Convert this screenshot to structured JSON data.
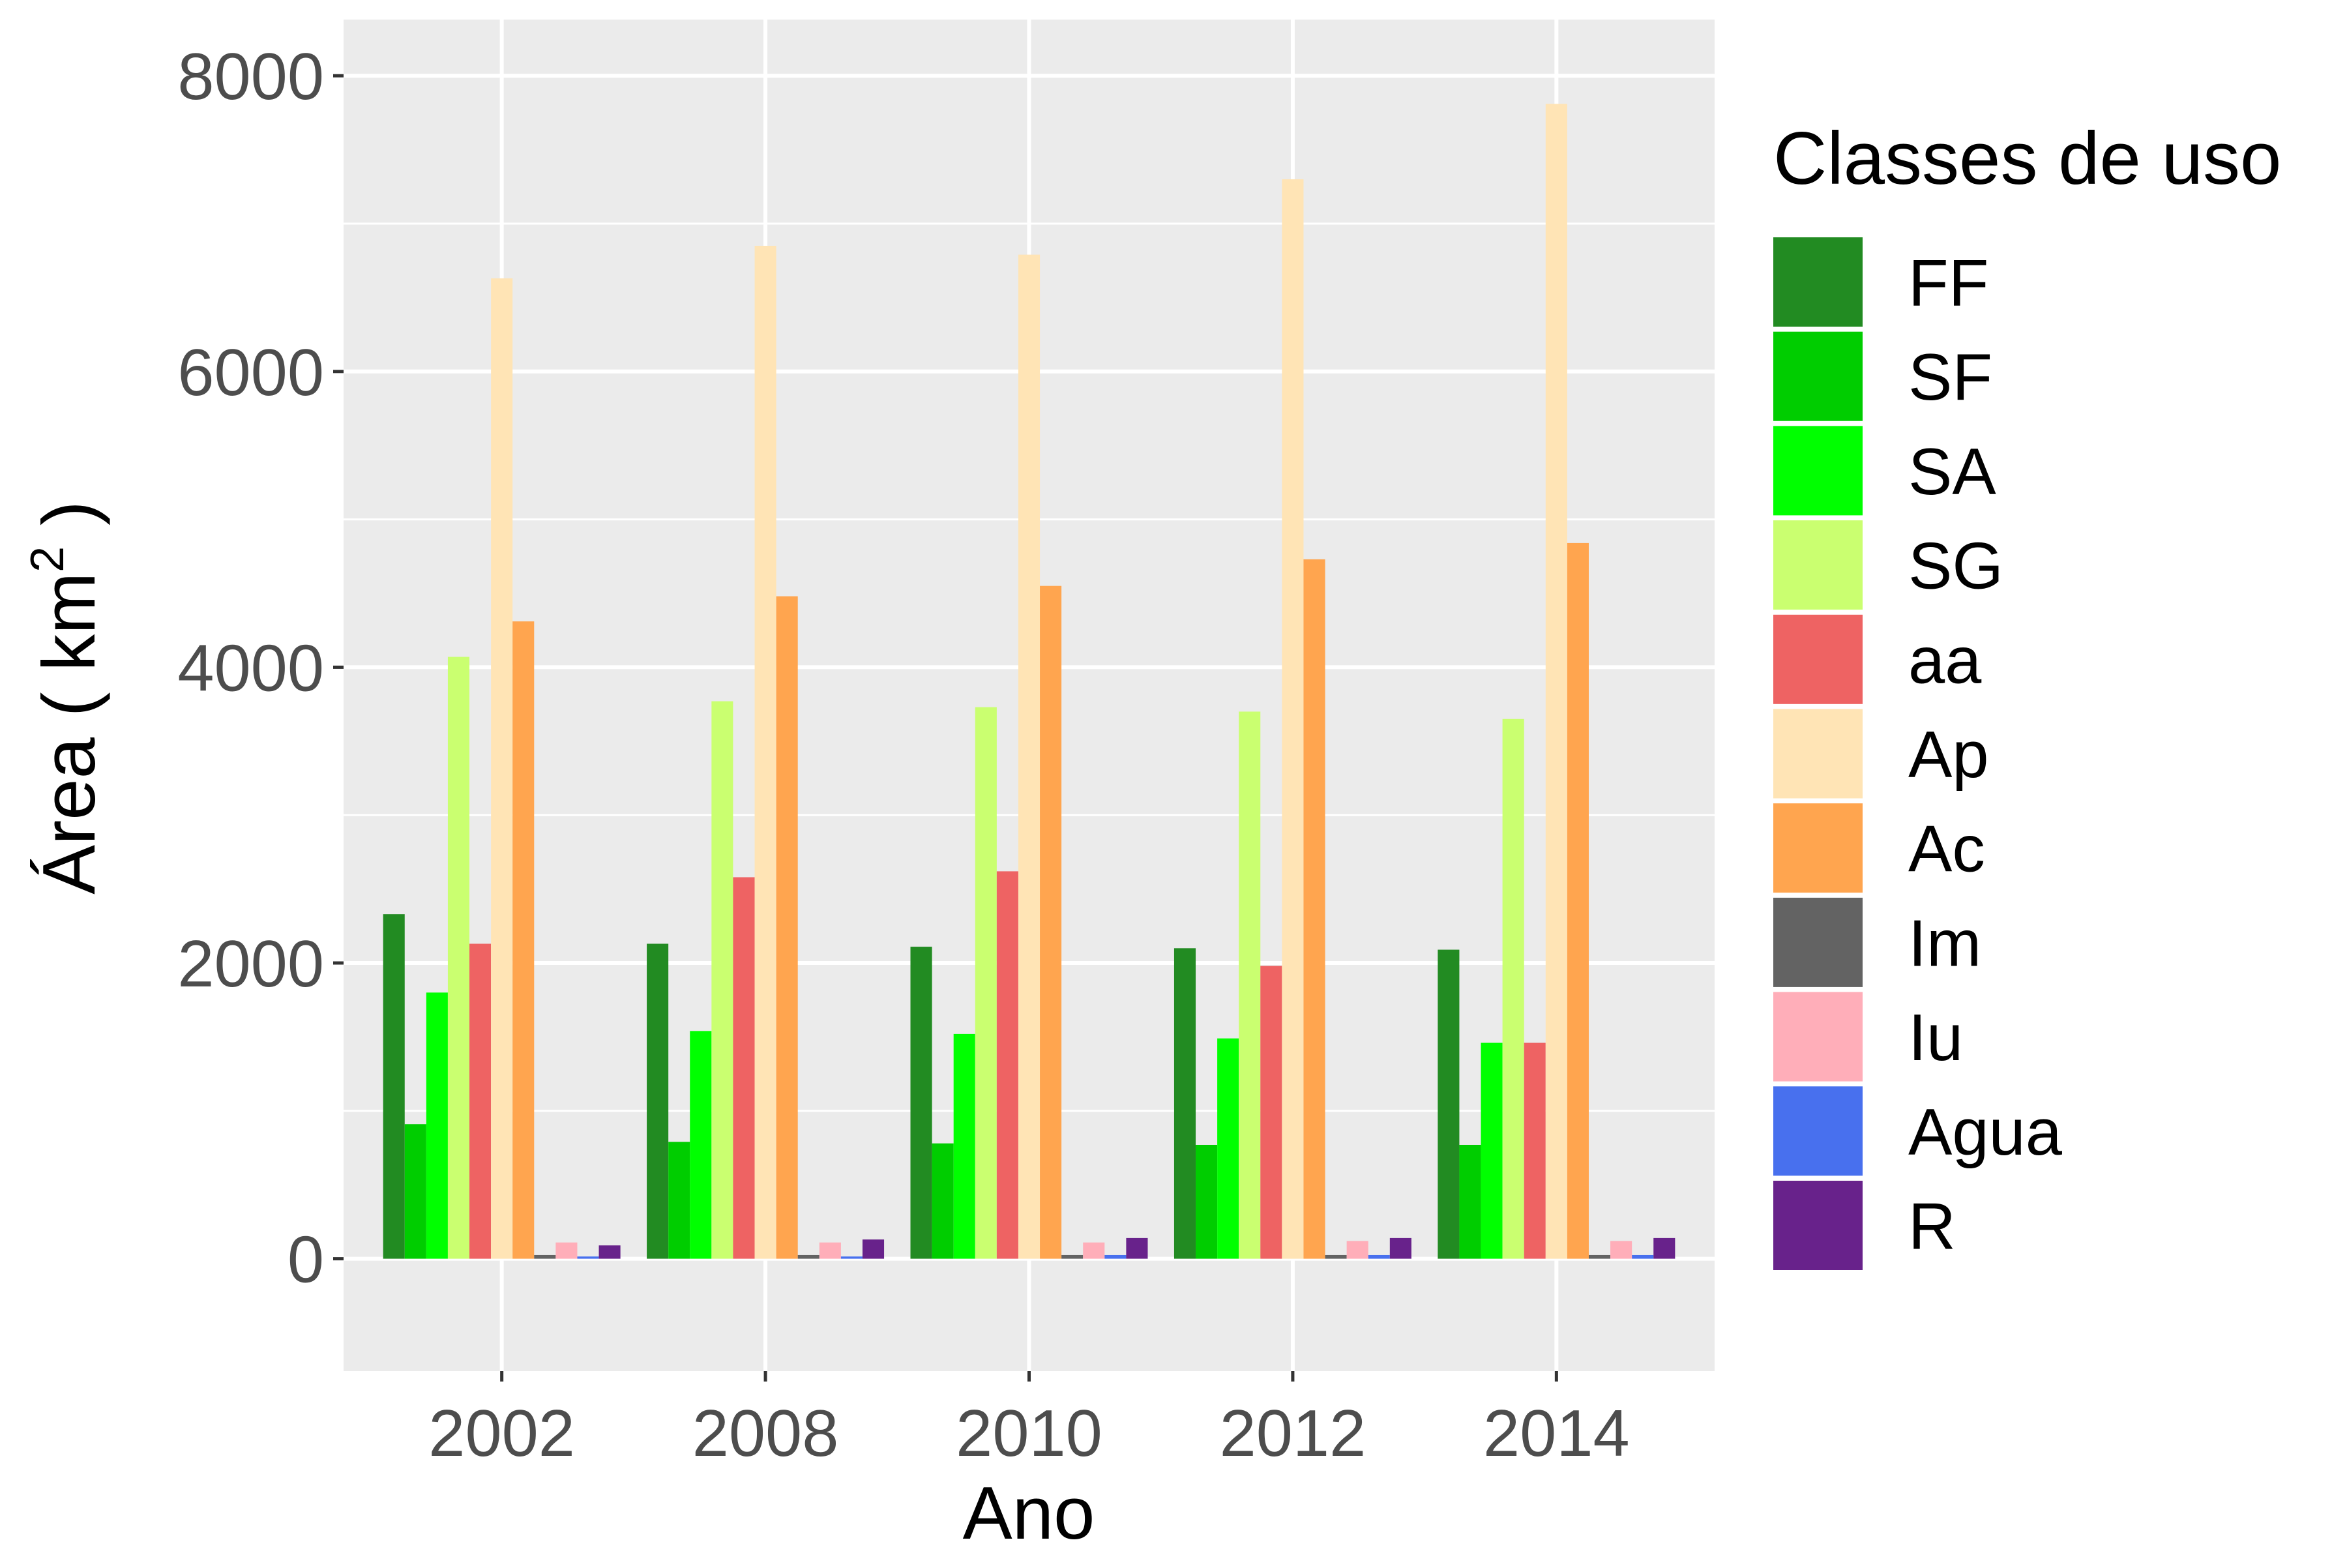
{
  "chart_data": {
    "type": "bar",
    "title": "",
    "xlabel": "Ano",
    "ylabel": "Área ( km",
    "ylabel_superscript": "2",
    "ylabel_suffix": " )",
    "categories": [
      "2002",
      "2008",
      "2010",
      "2012",
      "2014"
    ],
    "ylim": [
      -760,
      8380
    ],
    "yticks": [
      0,
      2000,
      4000,
      6000,
      8000
    ],
    "ytick_labels": [
      "0",
      "2000",
      "4000",
      "6000",
      "8000"
    ],
    "grid": true,
    "legend": {
      "title": "Classes de uso",
      "position": "right"
    },
    "series": [
      {
        "name": "FF",
        "color": "#228B22",
        "values": [
          2330,
          2130,
          2110,
          2100,
          2090
        ]
      },
      {
        "name": "SF",
        "color": "#00CD00",
        "values": [
          910,
          790,
          780,
          770,
          770
        ]
      },
      {
        "name": "SA",
        "color": "#00FF00",
        "values": [
          1800,
          1540,
          1520,
          1490,
          1460
        ]
      },
      {
        "name": "SG",
        "color": "#CAFF70",
        "values": [
          4070,
          3770,
          3730,
          3700,
          3650
        ]
      },
      {
        "name": "aa",
        "color": "#EE6363",
        "values": [
          2130,
          2580,
          2620,
          1980,
          1460
        ]
      },
      {
        "name": "Ap",
        "color": "#FFE4B5",
        "values": [
          6630,
          6850,
          6790,
          7300,
          7810
        ]
      },
      {
        "name": "Ac",
        "color": "#FFA54F",
        "values": [
          4310,
          4480,
          4550,
          4730,
          4840
        ]
      },
      {
        "name": "Im",
        "color": "#636363",
        "values": [
          25,
          25,
          25,
          25,
          25
        ]
      },
      {
        "name": "Iu",
        "color": "#FFAEB9",
        "values": [
          110,
          110,
          110,
          120,
          120
        ]
      },
      {
        "name": "Agua",
        "color": "#4870EE",
        "values": [
          15,
          15,
          25,
          25,
          25
        ]
      },
      {
        "name": "R",
        "color": "#68228B",
        "values": [
          90,
          130,
          140,
          140,
          140
        ]
      }
    ]
  }
}
